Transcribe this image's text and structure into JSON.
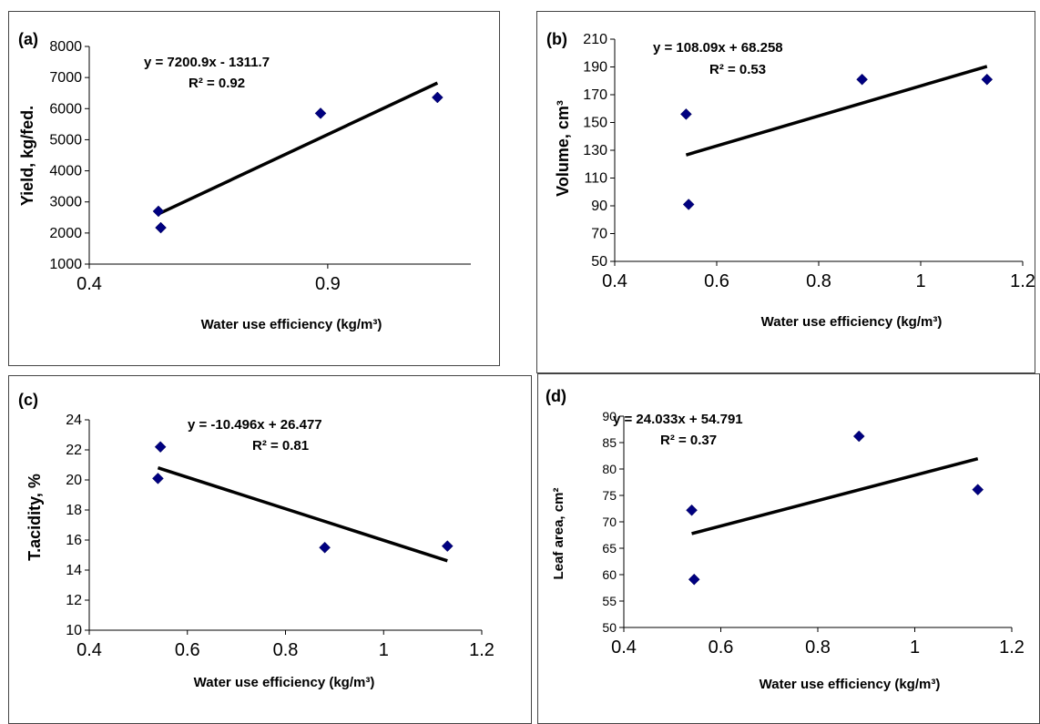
{
  "chart_data": [
    {
      "type": "scatter",
      "panel_label": "(a)",
      "xlabel": "Water use efficiency (kg/m³)",
      "ylabel": "Yield, kg/fed.",
      "xlim": [
        0.4,
        1.2
      ],
      "ylim": [
        1000,
        8000
      ],
      "xticks": [
        0.4,
        0.9
      ],
      "xtick_labels": [
        "0.4",
        "0.9"
      ],
      "yticks": [
        1000,
        2000,
        3000,
        4000,
        5000,
        6000,
        7000,
        8000
      ],
      "ytick_labels": [
        "1000",
        "2000",
        "3000",
        "4000",
        "5000",
        "6000",
        "7000",
        "8000"
      ],
      "grid": false,
      "legend": "none",
      "marker_color": "#000080",
      "line_color": "#000000",
      "points": [
        {
          "x": 0.545,
          "y": 2700
        },
        {
          "x": 0.55,
          "y": 2170
        },
        {
          "x": 0.885,
          "y": 5850
        },
        {
          "x": 1.13,
          "y": 6360
        }
      ],
      "trendline": {
        "slope": 7200.9,
        "intercept": -1311.7,
        "x_range": [
          0.545,
          1.13
        ]
      },
      "equation": "y = 7200.9x - 1311.7",
      "r2": "R² = 0.92"
    },
    {
      "type": "scatter",
      "panel_label": "(b)",
      "xlabel": "Water use efficiency (kg/m³)",
      "ylabel": "Volume, cm³",
      "xlim": [
        0.4,
        1.2
      ],
      "ylim": [
        50,
        210
      ],
      "xticks": [
        0.4,
        0.6,
        0.8,
        1.0,
        1.2
      ],
      "xtick_labels": [
        "0.4",
        "0.6",
        "0.8",
        "1",
        "1.2"
      ],
      "yticks": [
        50,
        70,
        90,
        110,
        130,
        150,
        170,
        190,
        210
      ],
      "ytick_labels": [
        "50",
        "70",
        "90",
        "110",
        "130",
        "150",
        "170",
        "190",
        "210"
      ],
      "grid": false,
      "legend": "none",
      "marker_color": "#000080",
      "line_color": "#000000",
      "points": [
        {
          "x": 0.54,
          "y": 156
        },
        {
          "x": 0.545,
          "y": 91
        },
        {
          "x": 0.885,
          "y": 181
        },
        {
          "x": 1.13,
          "y": 181
        }
      ],
      "trendline": {
        "slope": 108.09,
        "intercept": 68.258,
        "x_range": [
          0.54,
          1.13
        ]
      },
      "equation": "y = 108.09x + 68.258",
      "r2": "R² = 0.53"
    },
    {
      "type": "scatter",
      "panel_label": "(c)",
      "xlabel": "Water use efficiency (kg/m³)",
      "ylabel": "T.acidity, %",
      "xlim": [
        0.4,
        1.2
      ],
      "ylim": [
        10,
        24
      ],
      "xticks": [
        0.4,
        0.6,
        0.8,
        1.0,
        1.2
      ],
      "xtick_labels": [
        "0.4",
        "0.6",
        "0.8",
        "1",
        "1.2"
      ],
      "yticks": [
        10,
        12,
        14,
        16,
        18,
        20,
        22,
        24
      ],
      "ytick_labels": [
        "10",
        "12",
        "14",
        "16",
        "18",
        "20",
        "22",
        "24"
      ],
      "grid": false,
      "legend": "none",
      "marker_color": "#000080",
      "line_color": "#000000",
      "points": [
        {
          "x": 0.545,
          "y": 22.2
        },
        {
          "x": 0.54,
          "y": 20.1
        },
        {
          "x": 0.88,
          "y": 15.5
        },
        {
          "x": 1.13,
          "y": 15.6
        }
      ],
      "trendline": {
        "slope": -10.496,
        "intercept": 26.477,
        "x_range": [
          0.54,
          1.13
        ]
      },
      "equation": "y = -10.496x + 26.477",
      "r2": "R² = 0.81"
    },
    {
      "type": "scatter",
      "panel_label": "(d)",
      "xlabel": "Water use efficiency (kg/m³)",
      "ylabel": "Leaf area, cm²",
      "xlim": [
        0.4,
        1.2
      ],
      "ylim": [
        50,
        90
      ],
      "xticks": [
        0.4,
        0.6,
        0.8,
        1.0,
        1.2
      ],
      "xtick_labels": [
        "0.4",
        "0.6",
        "0.8",
        "1",
        "1.2"
      ],
      "yticks": [
        50,
        55,
        60,
        65,
        70,
        75,
        80,
        85,
        90
      ],
      "ytick_labels": [
        "50",
        "55",
        "60",
        "65",
        "70",
        "75",
        "80",
        "85",
        "90"
      ],
      "grid": false,
      "legend": "none",
      "marker_color": "#000080",
      "line_color": "#000000",
      "points": [
        {
          "x": 0.54,
          "y": 72.2
        },
        {
          "x": 0.545,
          "y": 59.1
        },
        {
          "x": 0.885,
          "y": 86.2
        },
        {
          "x": 1.13,
          "y": 76.1
        }
      ],
      "trendline": {
        "slope": 24.033,
        "intercept": 54.791,
        "x_range": [
          0.54,
          1.13
        ]
      },
      "equation": "y = 24.033x + 54.791",
      "r2": "R² = 0.37"
    }
  ]
}
